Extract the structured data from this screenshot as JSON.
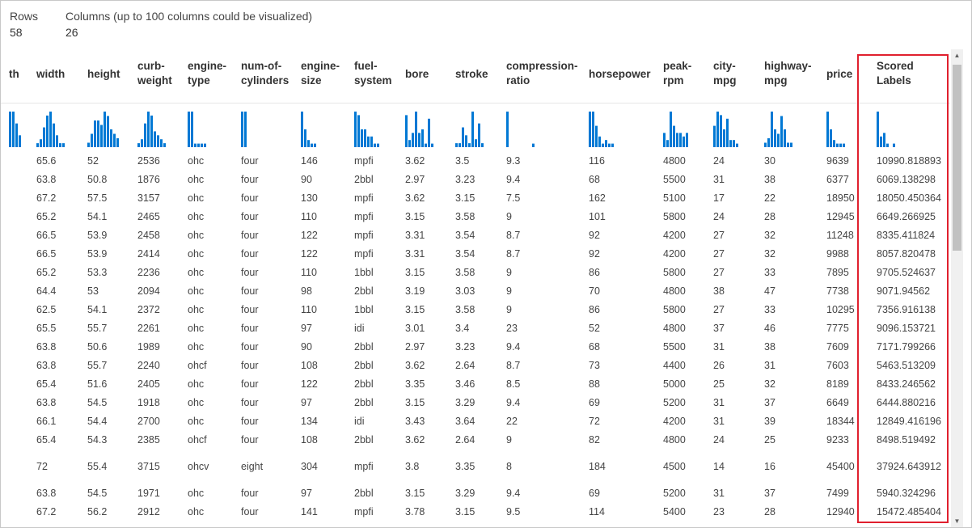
{
  "summary": {
    "rows_label": "Rows",
    "rows_value": "58",
    "columns_label": "Columns (up to 100 columns could be visualized)",
    "columns_value": "26"
  },
  "columns": [
    {
      "key": "length",
      "lines": [
        "th"
      ],
      "hist": [
        3,
        3,
        2,
        1
      ]
    },
    {
      "key": "width",
      "lines": [
        "width"
      ],
      "hist": [
        1,
        2,
        5,
        8,
        9,
        6,
        3,
        1,
        1
      ]
    },
    {
      "key": "height",
      "lines": [
        "height"
      ],
      "hist": [
        1,
        3,
        6,
        6,
        5,
        8,
        7,
        4,
        3,
        2
      ]
    },
    {
      "key": "curb-weight",
      "lines": [
        "curb-",
        "weight"
      ],
      "hist": [
        1,
        2,
        6,
        9,
        8,
        4,
        3,
        2,
        1
      ]
    },
    {
      "key": "engine-type",
      "lines": [
        "engine-",
        "type"
      ],
      "hist": [
        10,
        10,
        1,
        1,
        1,
        1,
        0
      ]
    },
    {
      "key": "num-of-cylinders",
      "lines": [
        "num-of-",
        "cylinders"
      ],
      "hist": [
        10,
        10,
        0,
        0,
        0,
        0,
        0
      ]
    },
    {
      "key": "engine-size",
      "lines": [
        "engine-",
        "size"
      ],
      "hist": [
        10,
        5,
        2,
        1,
        1,
        0,
        0
      ]
    },
    {
      "key": "fuel-system",
      "lines": [
        "fuel-",
        "system"
      ],
      "hist": [
        10,
        9,
        5,
        5,
        3,
        3,
        1,
        1
      ]
    },
    {
      "key": "bore",
      "lines": [
        "bore"
      ],
      "hist": [
        9,
        2,
        4,
        10,
        4,
        5,
        1,
        8,
        1
      ]
    },
    {
      "key": "stroke",
      "lines": [
        "stroke"
      ],
      "hist": [
        1,
        1,
        5,
        3,
        1,
        9,
        2,
        6,
        1
      ]
    },
    {
      "key": "compression-ratio",
      "lines": [
        "compression-",
        "ratio"
      ],
      "hist": [
        10,
        0,
        0,
        0,
        0,
        0,
        0,
        0,
        1
      ]
    },
    {
      "key": "horsepower",
      "lines": [
        "horsepower"
      ],
      "hist": [
        10,
        10,
        6,
        3,
        1,
        2,
        1,
        1
      ]
    },
    {
      "key": "peak-rpm",
      "lines": [
        "peak-",
        "rpm"
      ],
      "hist": [
        4,
        2,
        10,
        6,
        4,
        4,
        3,
        4,
        0
      ]
    },
    {
      "key": "city-mpg",
      "lines": [
        "city-",
        "mpg"
      ],
      "hist": [
        6,
        10,
        9,
        5,
        8,
        2,
        2,
        1
      ]
    },
    {
      "key": "highway-mpg",
      "lines": [
        "highway-",
        "mpg"
      ],
      "hist": [
        1,
        2,
        8,
        4,
        3,
        7,
        4,
        1,
        1
      ]
    },
    {
      "key": "price",
      "lines": [
        "price"
      ],
      "hist": [
        10,
        5,
        2,
        1,
        1,
        1
      ]
    },
    {
      "key": "scored-labels",
      "lines": [
        "Scored",
        "Labels"
      ],
      "hist": [
        10,
        3,
        4,
        1,
        0,
        1,
        0,
        0
      ]
    }
  ],
  "rows": [
    [
      "",
      "65.6",
      "52",
      "2536",
      "ohc",
      "four",
      "146",
      "mpfi",
      "3.62",
      "3.5",
      "9.3",
      "116",
      "4800",
      "24",
      "30",
      "9639",
      "10990.818893"
    ],
    [
      "",
      "63.8",
      "50.8",
      "1876",
      "ohc",
      "four",
      "90",
      "2bbl",
      "2.97",
      "3.23",
      "9.4",
      "68",
      "5500",
      "31",
      "38",
      "6377",
      "6069.138298"
    ],
    [
      "",
      "67.2",
      "57.5",
      "3157",
      "ohc",
      "four",
      "130",
      "mpfi",
      "3.62",
      "3.15",
      "7.5",
      "162",
      "5100",
      "17",
      "22",
      "18950",
      "18050.450364"
    ],
    [
      "",
      "65.2",
      "54.1",
      "2465",
      "ohc",
      "four",
      "110",
      "mpfi",
      "3.15",
      "3.58",
      "9",
      "101",
      "5800",
      "24",
      "28",
      "12945",
      "6649.266925"
    ],
    [
      "",
      "66.5",
      "53.9",
      "2458",
      "ohc",
      "four",
      "122",
      "mpfi",
      "3.31",
      "3.54",
      "8.7",
      "92",
      "4200",
      "27",
      "32",
      "11248",
      "8335.411824"
    ],
    [
      "",
      "66.5",
      "53.9",
      "2414",
      "ohc",
      "four",
      "122",
      "mpfi",
      "3.31",
      "3.54",
      "8.7",
      "92",
      "4200",
      "27",
      "32",
      "9988",
      "8057.820478"
    ],
    [
      "",
      "65.2",
      "53.3",
      "2236",
      "ohc",
      "four",
      "110",
      "1bbl",
      "3.15",
      "3.58",
      "9",
      "86",
      "5800",
      "27",
      "33",
      "7895",
      "9705.524637"
    ],
    [
      "",
      "64.4",
      "53",
      "2094",
      "ohc",
      "four",
      "98",
      "2bbl",
      "3.19",
      "3.03",
      "9",
      "70",
      "4800",
      "38",
      "47",
      "7738",
      "9071.94562"
    ],
    [
      "",
      "62.5",
      "54.1",
      "2372",
      "ohc",
      "four",
      "110",
      "1bbl",
      "3.15",
      "3.58",
      "9",
      "86",
      "5800",
      "27",
      "33",
      "10295",
      "7356.916138"
    ],
    [
      "",
      "65.5",
      "55.7",
      "2261",
      "ohc",
      "four",
      "97",
      "idi",
      "3.01",
      "3.4",
      "23",
      "52",
      "4800",
      "37",
      "46",
      "7775",
      "9096.153721"
    ],
    [
      "",
      "63.8",
      "50.6",
      "1989",
      "ohc",
      "four",
      "90",
      "2bbl",
      "2.97",
      "3.23",
      "9.4",
      "68",
      "5500",
      "31",
      "38",
      "7609",
      "7171.799266"
    ],
    [
      "",
      "63.8",
      "55.7",
      "2240",
      "ohcf",
      "four",
      "108",
      "2bbl",
      "3.62",
      "2.64",
      "8.7",
      "73",
      "4400",
      "26",
      "31",
      "7603",
      "5463.513209"
    ],
    [
      "",
      "65.4",
      "51.6",
      "2405",
      "ohc",
      "four",
      "122",
      "2bbl",
      "3.35",
      "3.46",
      "8.5",
      "88",
      "5000",
      "25",
      "32",
      "8189",
      "8433.246562"
    ],
    [
      "",
      "63.8",
      "54.5",
      "1918",
      "ohc",
      "four",
      "97",
      "2bbl",
      "3.15",
      "3.29",
      "9.4",
      "69",
      "5200",
      "31",
      "37",
      "6649",
      "6444.880216"
    ],
    [
      "",
      "66.1",
      "54.4",
      "2700",
      "ohc",
      "four",
      "134",
      "idi",
      "3.43",
      "3.64",
      "22",
      "72",
      "4200",
      "31",
      "39",
      "18344",
      "12849.416196"
    ],
    [
      "",
      "65.4",
      "54.3",
      "2385",
      "ohcf",
      "four",
      "108",
      "2bbl",
      "3.62",
      "2.64",
      "9",
      "82",
      "4800",
      "24",
      "25",
      "9233",
      "8498.519492"
    ],
    [
      "",
      "72",
      "55.4",
      "3715",
      "ohcv",
      "eight",
      "304",
      "mpfi",
      "3.8",
      "3.35",
      "8",
      "184",
      "4500",
      "14",
      "16",
      "45400",
      "37924.643912"
    ],
    [
      "",
      "63.8",
      "54.5",
      "1971",
      "ohc",
      "four",
      "97",
      "2bbl",
      "3.15",
      "3.29",
      "9.4",
      "69",
      "5200",
      "31",
      "37",
      "7499",
      "5940.324296"
    ],
    [
      "",
      "67.2",
      "56.2",
      "2912",
      "ohc",
      "four",
      "141",
      "mpfi",
      "3.78",
      "3.15",
      "9.5",
      "114",
      "5400",
      "23",
      "28",
      "12940",
      "15472.485404"
    ]
  ],
  "colors": {
    "histogram_bar": "#0078d4",
    "highlight_border": "#e0202e"
  },
  "icons": {
    "scroll_up": "scroll-up-arrow-icon",
    "scroll_down": "scroll-down-arrow-icon"
  }
}
